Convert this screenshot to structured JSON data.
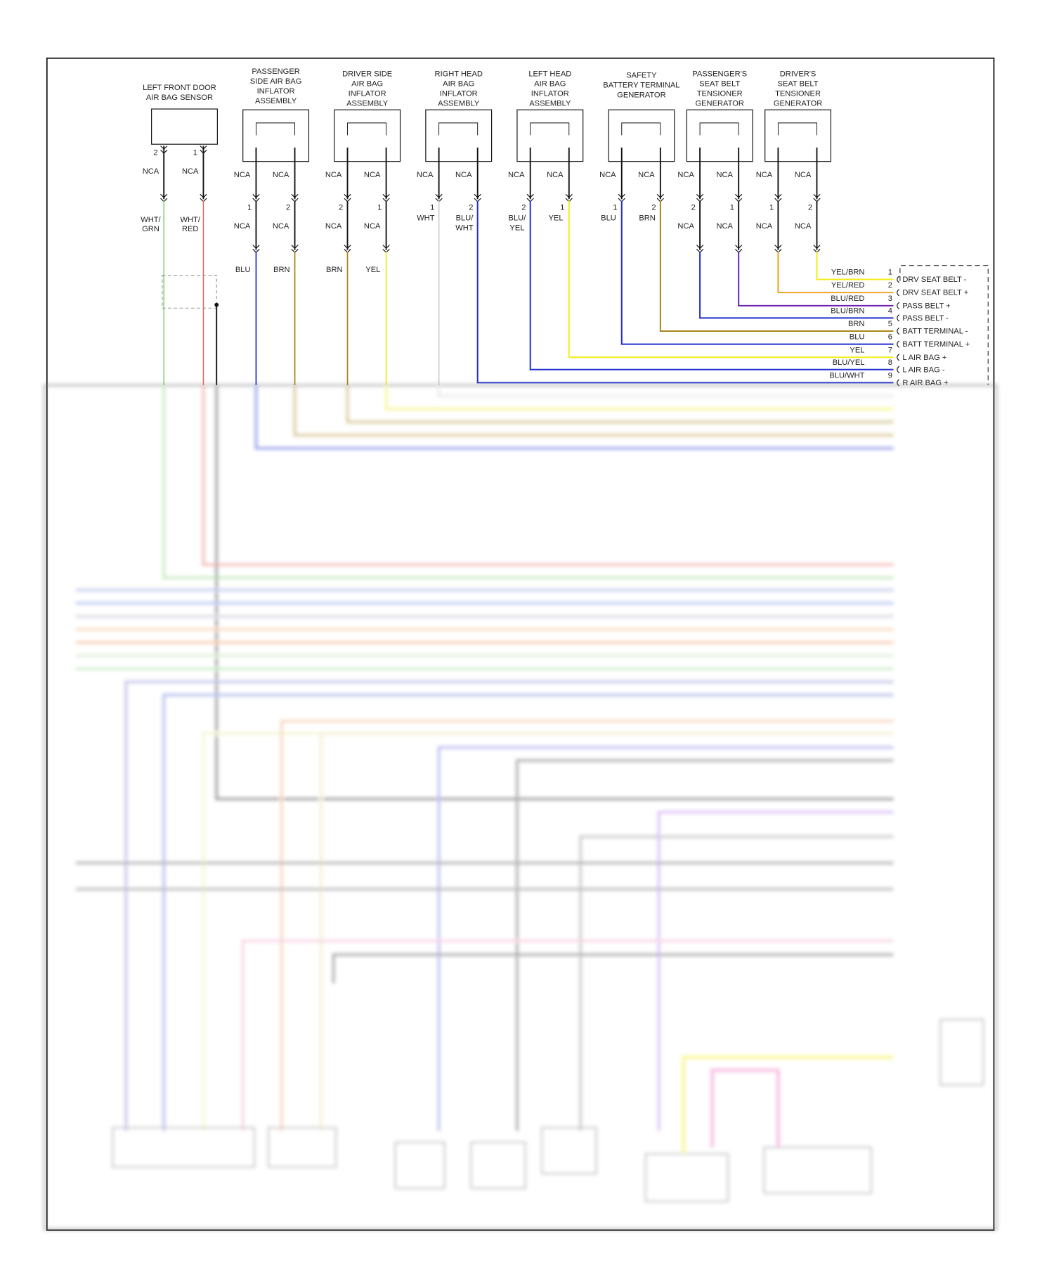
{
  "colors": {
    "BLK": "#111111",
    "GRN": "#7fcf6f",
    "RED": "#e0675f",
    "BLU": "#1f2fd0",
    "BRN": "#a8861a",
    "YEL": "#f2ee1a",
    "WHT": "#cfcfcf",
    "ORG": "#f0a020",
    "PUR": "#6a1fb0"
  },
  "sensor": {
    "title_lines": [
      "LEFT FRONT DOOR",
      "AIR BAG SENSOR"
    ],
    "pins": [
      "2",
      "1"
    ],
    "nca": [
      "NCA",
      "NCA"
    ],
    "wires": [
      [
        "WHT/",
        "GRN"
      ],
      [
        "WHT/",
        "RED"
      ]
    ]
  },
  "components": [
    {
      "title_lines": [
        "PASSENGER",
        "SIDE AIR BAG",
        "INFLATOR",
        "ASSEMBLY"
      ],
      "upper": [
        "NCA",
        "NCA"
      ],
      "pins": [
        "1",
        "2"
      ],
      "lower": [
        "NCA",
        "NCA"
      ],
      "wires": [
        [
          "BLU"
        ],
        [
          "BRN"
        ]
      ]
    },
    {
      "title_lines": [
        "DRIVER SIDE",
        "AIR BAG",
        "INFLATOR",
        "ASSEMBLY"
      ],
      "upper": [
        "NCA",
        "NCA"
      ],
      "pins": [
        "2",
        "1"
      ],
      "lower": [
        "NCA",
        "NCA"
      ],
      "wires": [
        [
          "BRN"
        ],
        [
          "YEL"
        ]
      ]
    },
    {
      "title_lines": [
        "RIGHT HEAD",
        "AIR BAG",
        "INFLATOR",
        "ASSEMBLY"
      ],
      "upper": [
        "NCA",
        "NCA"
      ],
      "pins": [
        "1",
        "2"
      ],
      "lower": [],
      "wires": [
        [
          "WHT"
        ],
        [
          "BLU/",
          "WHT"
        ]
      ]
    },
    {
      "title_lines": [
        "LEFT HEAD",
        "AIR BAG",
        "INFLATOR",
        "ASSEMBLY"
      ],
      "upper": [
        "NCA",
        "NCA"
      ],
      "pins": [
        "2",
        "1"
      ],
      "lower": [],
      "wires": [
        [
          "BLU/",
          "YEL"
        ],
        [
          "YEL"
        ]
      ]
    },
    {
      "title_lines": [
        "SAFETY",
        "BATTERY TERMINAL",
        "GENERATOR"
      ],
      "upper": [
        "NCA",
        "NCA"
      ],
      "pins": [
        "1",
        "2"
      ],
      "lower": [],
      "wires": [
        [
          "BLU"
        ],
        [
          "BRN"
        ]
      ]
    },
    {
      "title_lines": [
        "PASSENGER'S",
        "SEAT BELT",
        "TENSIONER",
        "GENERATOR"
      ],
      "upper": [
        "NCA",
        "NCA"
      ],
      "pins": [
        "2",
        "1"
      ],
      "lower": [
        "NCA",
        "NCA"
      ],
      "wires": []
    },
    {
      "title_lines": [
        "DRIVER'S",
        "SEAT BELT",
        "TENSIONER",
        "GENERATOR"
      ],
      "upper": [
        "NCA",
        "NCA"
      ],
      "pins": [
        "1",
        "2"
      ],
      "lower": [
        "NCA",
        "NCA"
      ],
      "wires": []
    }
  ],
  "connector": {
    "pins": [
      {
        "num": "1",
        "wire": "YEL/BRN",
        "label": "DRV SEAT BELT -"
      },
      {
        "num": "2",
        "wire": "YEL/RED",
        "label": "DRV SEAT BELT +"
      },
      {
        "num": "3",
        "wire": "BLU/RED",
        "label": "PASS BELT +"
      },
      {
        "num": "4",
        "wire": "BLU/BRN",
        "label": "PASS BELT -"
      },
      {
        "num": "5",
        "wire": "BRN",
        "label": "BATT TERMINAL -"
      },
      {
        "num": "6",
        "wire": "BLU",
        "label": "BATT TERMINAL +"
      },
      {
        "num": "7",
        "wire": "YEL",
        "label": "L AIR BAG +"
      },
      {
        "num": "8",
        "wire": "BLU/YEL",
        "label": "L AIR BAG -"
      },
      {
        "num": "9",
        "wire": "BLU/WHT",
        "label": "R AIR BAG +"
      }
    ]
  }
}
